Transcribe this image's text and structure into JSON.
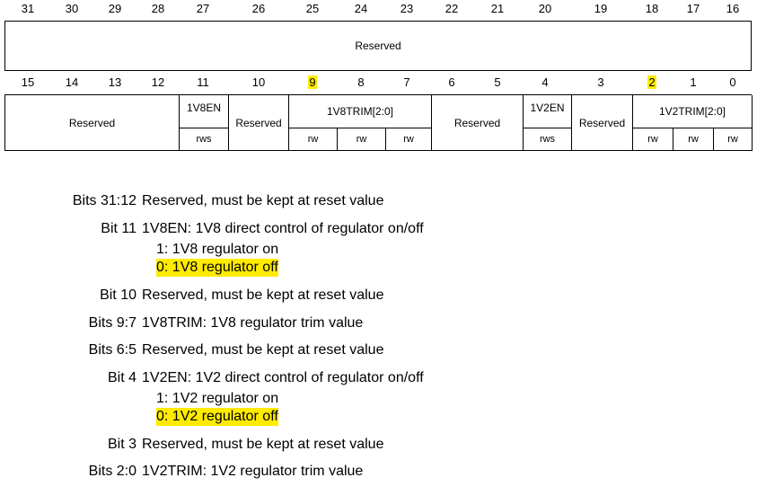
{
  "upper_bits": [
    "31",
    "30",
    "29",
    "28",
    "27",
    "26",
    "25",
    "24",
    "23",
    "22",
    "21",
    "20",
    "19",
    "18",
    "17",
    "16"
  ],
  "lower_bits": [
    "15",
    "14",
    "13",
    "12",
    "11",
    "10",
    "9",
    "8",
    "7",
    "6",
    "5",
    "4",
    "3",
    "2",
    "1",
    "0"
  ],
  "upper_reserved": "Reserved",
  "fields": {
    "res_15_12": "Reserved",
    "v18en": "1V8EN",
    "v18en_access": "rws",
    "res_10": "Reserved",
    "v18trim": "1V8TRIM[2:0]",
    "v18trim_access": [
      "rw",
      "rw",
      "rw"
    ],
    "res_6_5": "Reserved",
    "v12en": "1V2EN",
    "v12en_access": "rws",
    "res_3": "Reserved",
    "v12trim": "1V2TRIM[2:0]",
    "v12trim_access": [
      "rw",
      "rw",
      "rw"
    ]
  },
  "description": [
    {
      "label": "Bits 31:12",
      "text": "Reserved, must be kept at reset value"
    },
    {
      "label": "Bit 11",
      "text": "1V8EN: 1V8 direct control of regulator on/off",
      "sub": [
        {
          "text": "1: 1V8 regulator on",
          "highlight": false
        },
        {
          "text": "0: 1V8 regulator off",
          "highlight": true
        }
      ]
    },
    {
      "label": "Bit 10",
      "text": "Reserved, must be kept at reset value"
    },
    {
      "label": "Bits 9:7",
      "text": "1V8TRIM: 1V8 regulator trim value"
    },
    {
      "label": "Bits 6:5",
      "text": "Reserved, must be kept at reset value"
    },
    {
      "label": "Bit 4",
      "text": "1V2EN: 1V2 direct control of regulator on/off",
      "sub": [
        {
          "text": "1: 1V2 regulator on",
          "highlight": false
        },
        {
          "text": "0: 1V2 regulator off",
          "highlight": true
        }
      ]
    },
    {
      "label": "Bit 3",
      "text": "Reserved, must be kept at reset value"
    },
    {
      "label": "Bits 2:0",
      "text": "1V2TRIM: 1V2 regulator trim value"
    }
  ]
}
